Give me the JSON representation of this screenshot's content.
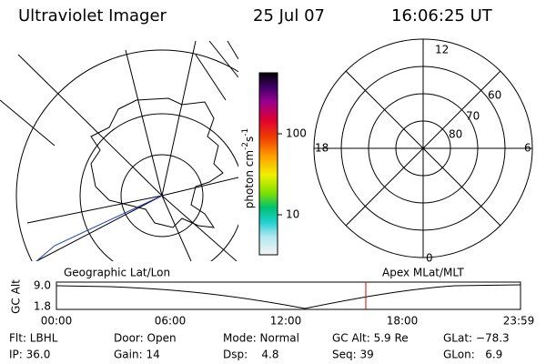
{
  "header": {
    "title": "Ultraviolet Imager",
    "date": "25 Jul 07",
    "time": "16:06:25 UT"
  },
  "colorbar": {
    "ticks": [
      "100",
      "10"
    ],
    "unit": [
      "photon cm",
      "-2",
      "s",
      "-1"
    ]
  },
  "polar": {
    "labels": [
      "12",
      "6",
      "18",
      "0",
      "60",
      "70",
      "80"
    ]
  },
  "timeline": {
    "left_label": "Geographic Lat/Lon",
    "right_label": "Apex MLat/MLT",
    "y_title": "GC Alt",
    "yticks": [
      "9.0",
      "1.8"
    ],
    "xticks": [
      "00:00",
      "06:00",
      "12:00",
      "18:00",
      "23:59"
    ]
  },
  "status": {
    "rows": [
      [
        "Flt: LBHL",
        "Door: Open",
        "Mode: Normal",
        "GC Alt: 5.9 Re",
        "GLat: −78.3"
      ],
      [
        "IP: 36.0",
        "Gain: 14",
        "Dsp:    4.8",
        "Seq: 39",
        "GLon:   6.9"
      ]
    ]
  }
}
